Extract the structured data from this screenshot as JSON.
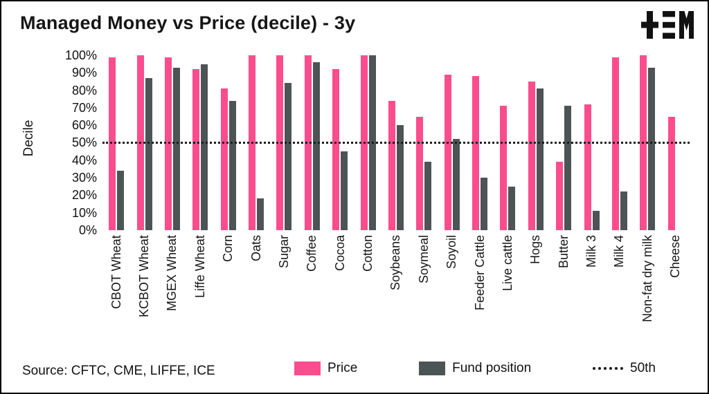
{
  "title": "Managed Money vs Price (decile) - 3y",
  "source": "Source: CFTC, CME, LIFFE, ICE",
  "colors": {
    "price": "#FB4D8D",
    "fund": "#4D5456",
    "reference": "#1C1C1C",
    "background": "#FFFFFF",
    "text": "#161616"
  },
  "legend": [
    {
      "label": "Price",
      "swatch": "#FB4D8D",
      "type": "rect"
    },
    {
      "label": "Fund position",
      "swatch": "#4D5456",
      "type": "rect"
    },
    {
      "label": "50th",
      "type": "dotted-line"
    }
  ],
  "chart_data": {
    "type": "bar",
    "title": "Managed Money vs Price (decile) - 3y",
    "xlabel": "",
    "ylabel": "Decile",
    "ylim": [
      0,
      100
    ],
    "ytick_labels": [
      "100%",
      "90%",
      "80%",
      "70%",
      "60%",
      "50%",
      "40%",
      "30%",
      "20%",
      "10%",
      "0%"
    ],
    "grid": false,
    "legend_position": "bottom",
    "reference_line": {
      "value": 50,
      "label": "50th",
      "style": "dotted"
    },
    "categories": [
      "CBOT Wheat",
      "KCBOT Wheat",
      "MGEX Wheat",
      "Liffe Wheat",
      "Corn",
      "Oats",
      "Sugar",
      "Coffee",
      "Cocoa",
      "Cotton",
      "Soybeans",
      "Soymeal",
      "Soyoil",
      "Feeder Cattle",
      "Live cattle",
      "Hogs",
      "Butter",
      "Milk 3",
      "Milk 4",
      "Non-fat dry milk",
      "Cheese"
    ],
    "series": [
      {
        "name": "Price",
        "color": "#FB4D8D",
        "values": [
          99,
          100,
          99,
          92,
          81,
          100,
          100,
          100,
          92,
          100,
          74,
          65,
          89,
          88,
          71,
          85,
          39,
          72,
          99,
          100,
          65
        ]
      },
      {
        "name": "Fund position",
        "color": "#4D5456",
        "values": [
          34,
          87,
          93,
          95,
          74,
          18,
          84,
          96,
          45,
          100,
          60,
          39,
          52,
          30,
          25,
          81,
          71,
          11,
          22,
          93,
          0
        ]
      }
    ]
  }
}
